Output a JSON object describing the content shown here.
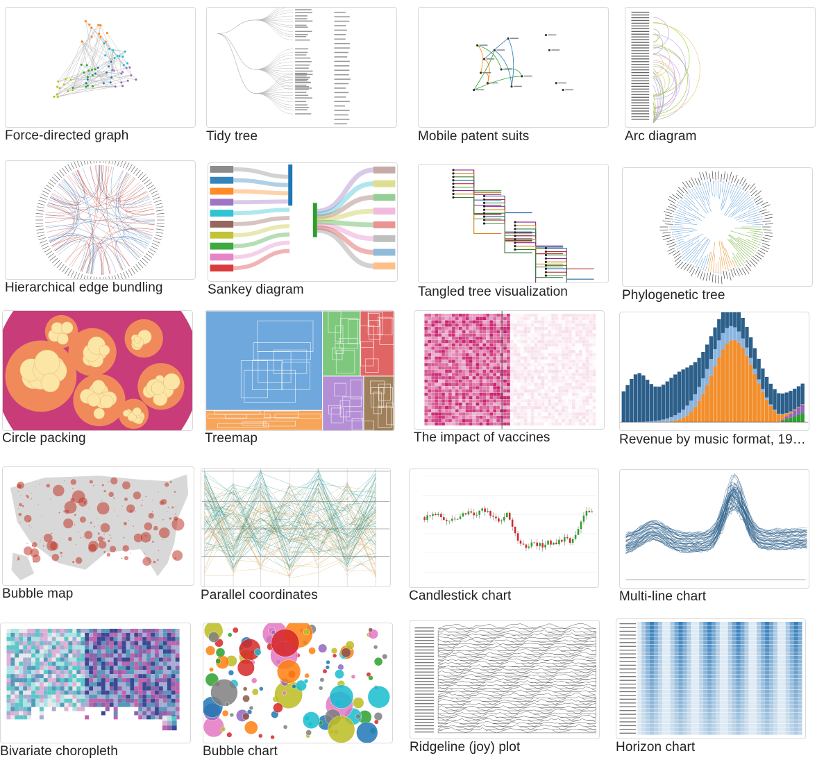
{
  "gallery": {
    "items": [
      {
        "title": "Force-directed graph",
        "thumbnail": "force-directed-graph"
      },
      {
        "title": "Tidy tree",
        "thumbnail": "tidy-tree"
      },
      {
        "title": "Mobile patent suits",
        "thumbnail": "mobile-patent-suits"
      },
      {
        "title": "Arc diagram",
        "thumbnail": "arc-diagram"
      },
      {
        "title": "Hierarchical edge bundling",
        "thumbnail": "hierarchical-edge-bundling"
      },
      {
        "title": "Sankey diagram",
        "thumbnail": "sankey-diagram"
      },
      {
        "title": "Tangled tree visualization",
        "thumbnail": "tangled-tree"
      },
      {
        "title": "Phylogenetic tree",
        "thumbnail": "phylogenetic-tree"
      },
      {
        "title": "Circle packing",
        "thumbnail": "circle-packing"
      },
      {
        "title": "Treemap",
        "thumbnail": "treemap"
      },
      {
        "title": "The impact of vaccines",
        "thumbnail": "vaccines-heatmap"
      },
      {
        "title": "Revenue by music format, 19…",
        "thumbnail": "music-revenue"
      },
      {
        "title": "Bubble map",
        "thumbnail": "bubble-map"
      },
      {
        "title": "Parallel coordinates",
        "thumbnail": "parallel-coordinates"
      },
      {
        "title": "Candlestick chart",
        "thumbnail": "candlestick"
      },
      {
        "title": "Multi-line chart",
        "thumbnail": "multi-line"
      },
      {
        "title": "Bivariate choropleth",
        "thumbnail": "bivariate-choropleth"
      },
      {
        "title": "Bubble chart",
        "thumbnail": "bubble-chart"
      },
      {
        "title": "Ridgeline (joy) plot",
        "thumbnail": "ridgeline"
      },
      {
        "title": "Horizon chart",
        "thumbnail": "horizon"
      }
    ]
  },
  "colors": {
    "caption_text": "#222222",
    "thumb_border": "#d8d8d8"
  }
}
